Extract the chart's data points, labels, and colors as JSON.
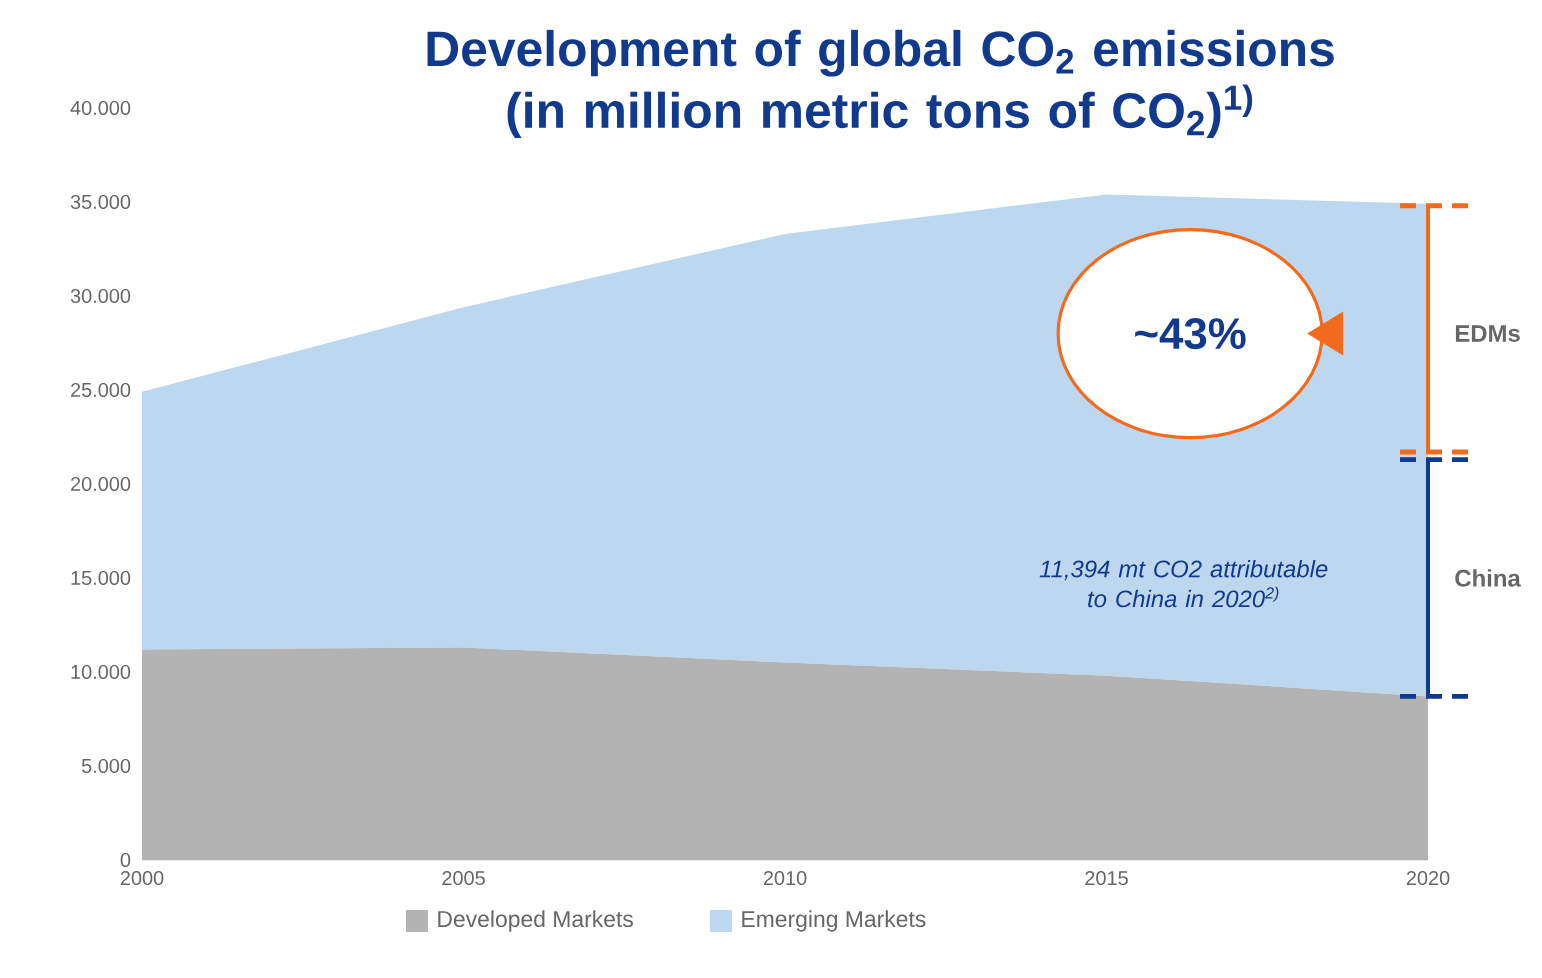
{
  "chart_data": {
    "type": "area",
    "stacked": true,
    "title": "Development of global CO$_{2}$ emissions (in million metric tons of CO$_{2}$)$^{1)}$",
    "x": [
      2000,
      2005,
      2010,
      2015,
      2020
    ],
    "series": [
      {
        "name": "Developed Markets",
        "color": "#b3b3b3",
        "values": [
          11200,
          11300,
          10500,
          9800,
          8700
        ]
      },
      {
        "name": "Emerging Markets",
        "color": "#bdd7ee",
        "values": [
          13700,
          18100,
          22800,
          25600,
          26200
        ]
      }
    ],
    "xlim": [
      2000,
      2020
    ],
    "xticks": [
      2000,
      2005,
      2010,
      2015,
      2020
    ],
    "ylim": [
      0,
      40000
    ],
    "yticks": [
      0,
      {
        "value": 5000,
        "label": "5.000"
      },
      {
        "value": 10000,
        "label": "10.000"
      },
      {
        "value": 15000,
        "label": "15.000"
      },
      {
        "value": 20000,
        "label": "20.000"
      },
      {
        "value": 25000,
        "label": "25.000"
      },
      {
        "value": 30000,
        "label": "30.000"
      },
      {
        "value": 35000,
        "label": "35.000"
      },
      {
        "value": 40000,
        "label": "40.000"
      }
    ],
    "legend": "bottom",
    "annotations": [
      "~43%",
      "EDMs",
      "China",
      "11,394 mt CO2 attributable to China in 2020$^{2)}$"
    ]
  }
}
